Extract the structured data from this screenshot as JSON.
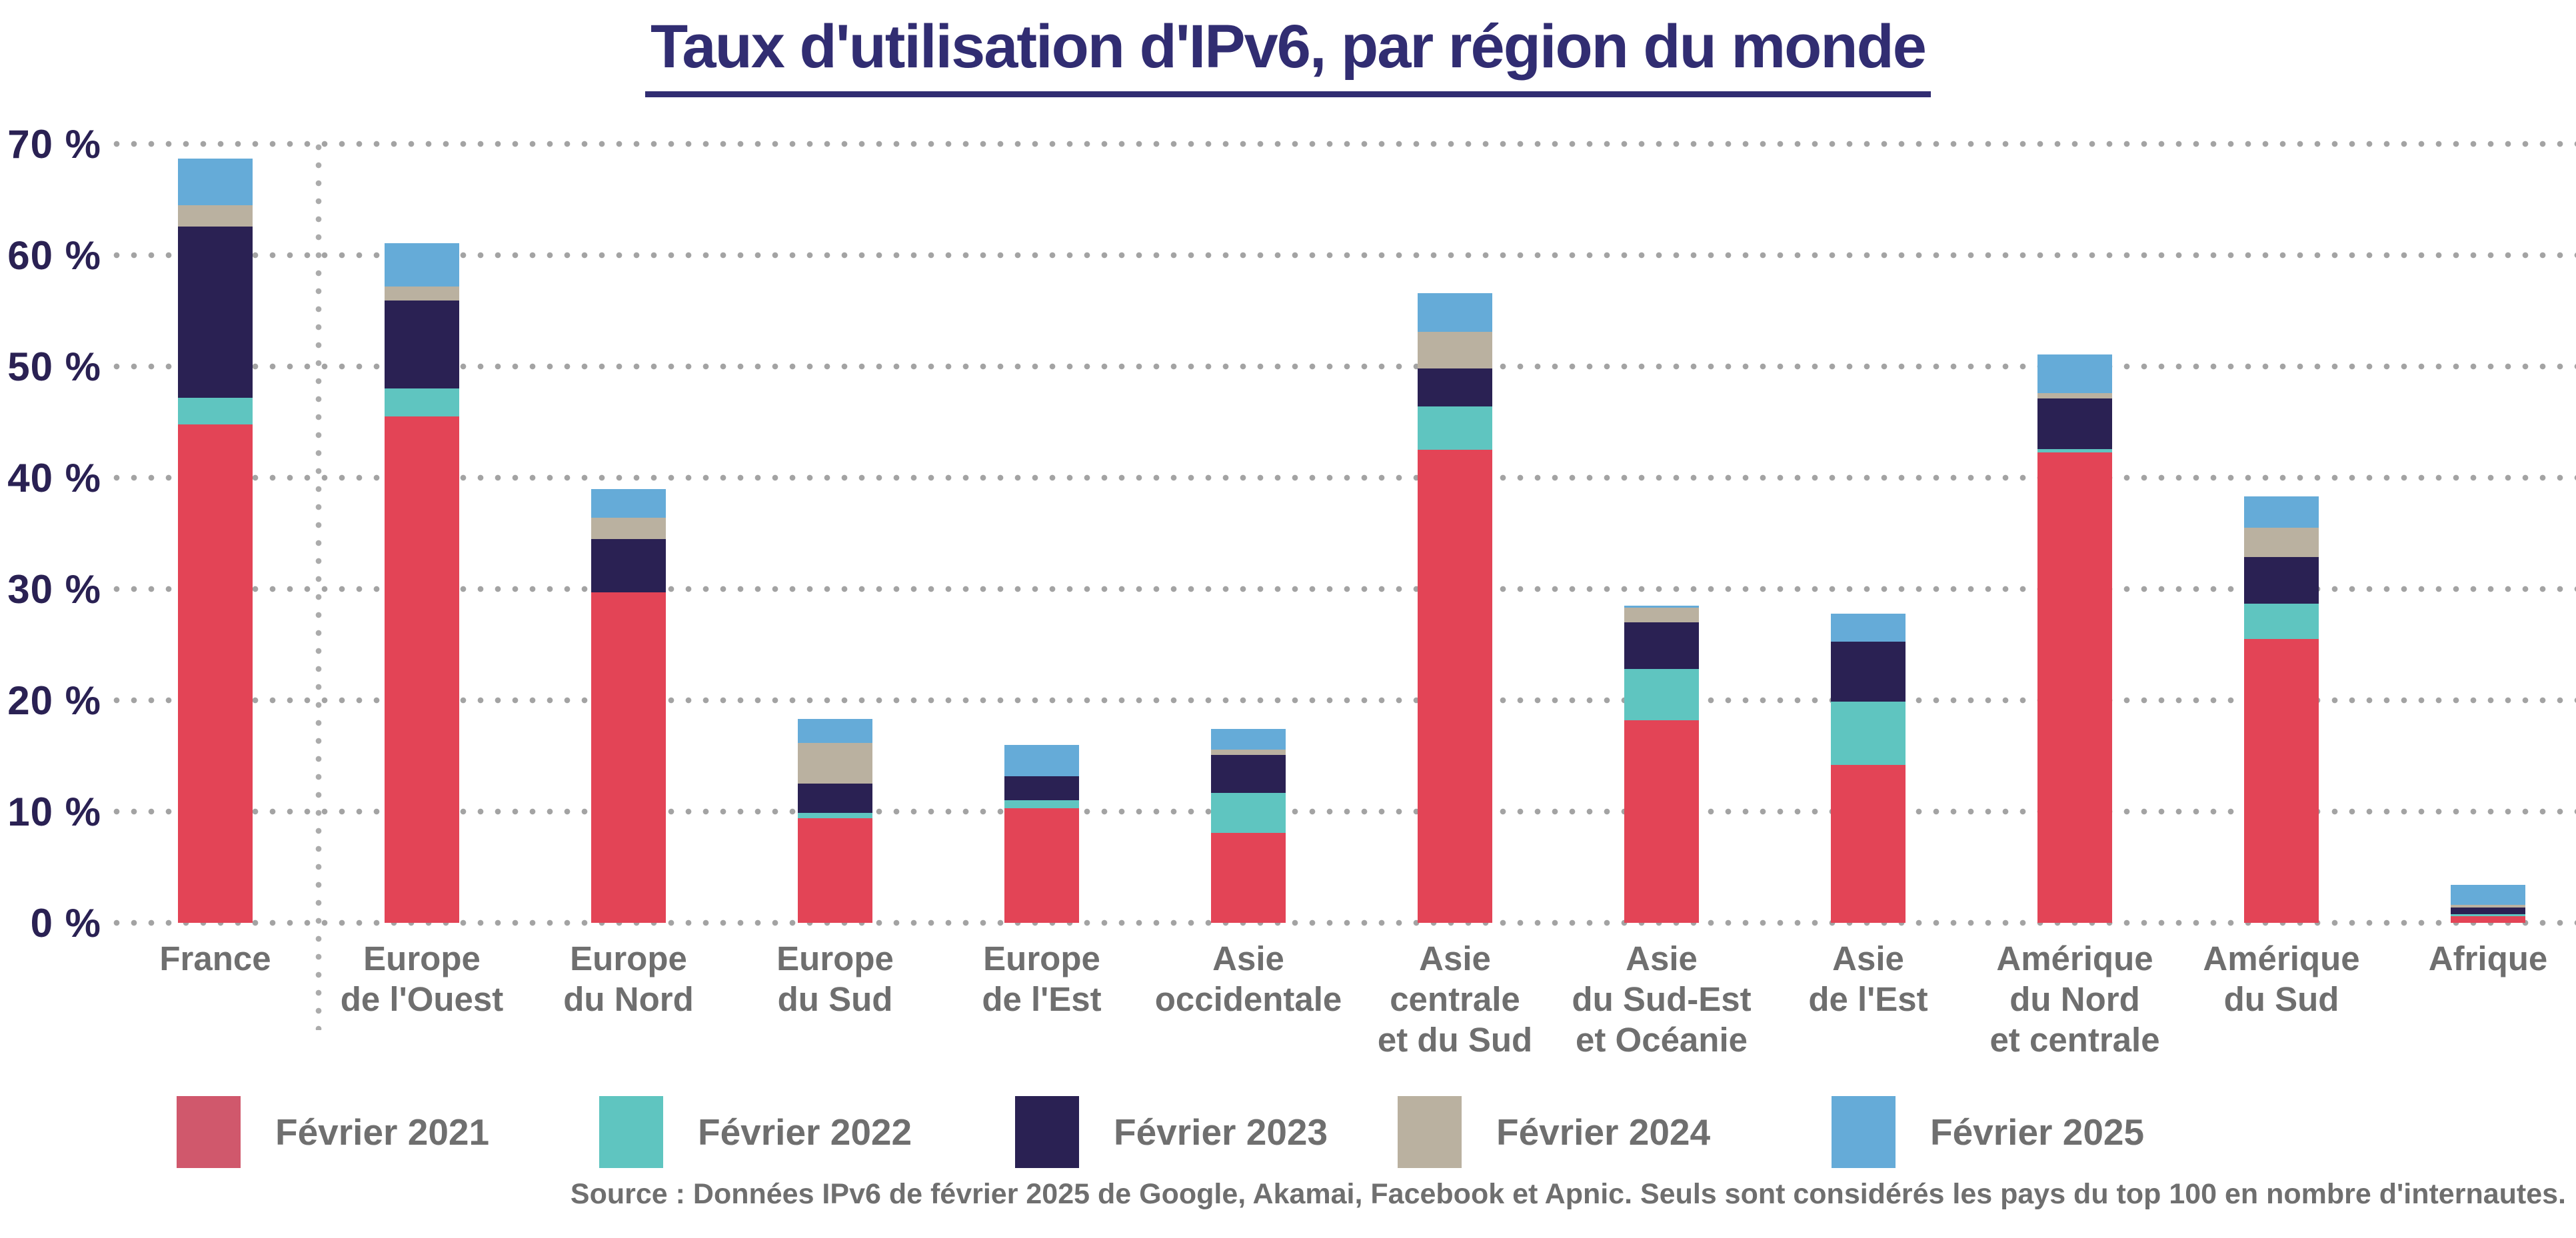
{
  "title": "Taux d'utilisation d'IPv6, par région du monde",
  "y_axis": {
    "ticks": [
      "70 %",
      "60 %",
      "50 %",
      "40 %",
      "30 %",
      "20 %",
      "10 %",
      "0 %"
    ]
  },
  "legend": [
    {
      "label": "Février 2021",
      "color": "#d0586c"
    },
    {
      "label": "Février 2022",
      "color": "#5fc5c0"
    },
    {
      "label": "Février 2023",
      "color": "#2a2153"
    },
    {
      "label": "Février 2024",
      "color": "#bab1a0"
    },
    {
      "label": "Février 2025",
      "color": "#65abd8"
    }
  ],
  "source": "Source : Données IPv6 de février 2025 de Google, Akamai, Facebook et Apnic. Seuls sont considérés les pays du top 100 en nombre d'internautes.",
  "chart_data": {
    "type": "bar",
    "stacked": true,
    "unit": "%",
    "ylim": [
      0,
      70
    ],
    "grid": "dotted-horizontal",
    "legend_position": "bottom",
    "note": "Each bar shows the IPv6 adoption rate per region at five dates; segments stack the year-over-year increments. Values below are the cumulative rate (%) at each date. A dotted vertical separator isolates France from the regions.",
    "categories": [
      {
        "label": "France",
        "lines": [
          "France"
        ]
      },
      {
        "label": "Europe de l'Ouest",
        "lines": [
          "Europe",
          "de l'Ouest"
        ]
      },
      {
        "label": "Europe du Nord",
        "lines": [
          "Europe",
          "du Nord"
        ]
      },
      {
        "label": "Europe du Sud",
        "lines": [
          "Europe",
          "du Sud"
        ]
      },
      {
        "label": "Europe de l'Est",
        "lines": [
          "Europe",
          "de l'Est"
        ]
      },
      {
        "label": "Asie occidentale",
        "lines": [
          "Asie",
          "occidentale"
        ]
      },
      {
        "label": "Asie centrale et du Sud",
        "lines": [
          "Asie",
          "centrale",
          "et du Sud"
        ]
      },
      {
        "label": "Asie du Sud-Est et Océanie",
        "lines": [
          "Asie",
          "du Sud-Est",
          "et Océanie"
        ]
      },
      {
        "label": "Asie de l'Est",
        "lines": [
          "Asie",
          "de l'Est"
        ]
      },
      {
        "label": "Amérique du Nord et centrale",
        "lines": [
          "Amérique",
          "du Nord",
          "et centrale"
        ]
      },
      {
        "label": "Amérique du Sud",
        "lines": [
          "Amérique",
          "du Sud"
        ]
      },
      {
        "label": "Afrique",
        "lines": [
          "Afrique"
        ]
      }
    ],
    "series": [
      {
        "name": "Février 2021",
        "color": "#e34456",
        "values": [
          44.8,
          45.5,
          29.7,
          9.4,
          10.3,
          8.1,
          42.5,
          18.2,
          14.2,
          42.3,
          25.5,
          0.6
        ]
      },
      {
        "name": "Février 2022",
        "color": "#5fc5c0",
        "values": [
          47.2,
          48.0,
          29.7,
          9.9,
          11.0,
          11.7,
          46.4,
          22.8,
          19.9,
          42.6,
          28.7,
          0.8
        ]
      },
      {
        "name": "Février 2023",
        "color": "#2a2153",
        "values": [
          62.6,
          55.9,
          34.5,
          12.5,
          13.2,
          15.1,
          49.8,
          27.0,
          25.3,
          47.1,
          32.9,
          1.4
        ]
      },
      {
        "name": "Février 2024",
        "color": "#bab1a0",
        "values": [
          64.5,
          57.2,
          36.4,
          16.2,
          13.2,
          15.6,
          53.1,
          28.3,
          25.3,
          47.6,
          35.5,
          1.6
        ]
      },
      {
        "name": "Février 2025",
        "color": "#65abd8",
        "values": [
          68.7,
          61.1,
          39.0,
          18.3,
          16.0,
          17.4,
          56.6,
          28.5,
          27.8,
          51.1,
          38.3,
          3.4
        ]
      }
    ]
  }
}
